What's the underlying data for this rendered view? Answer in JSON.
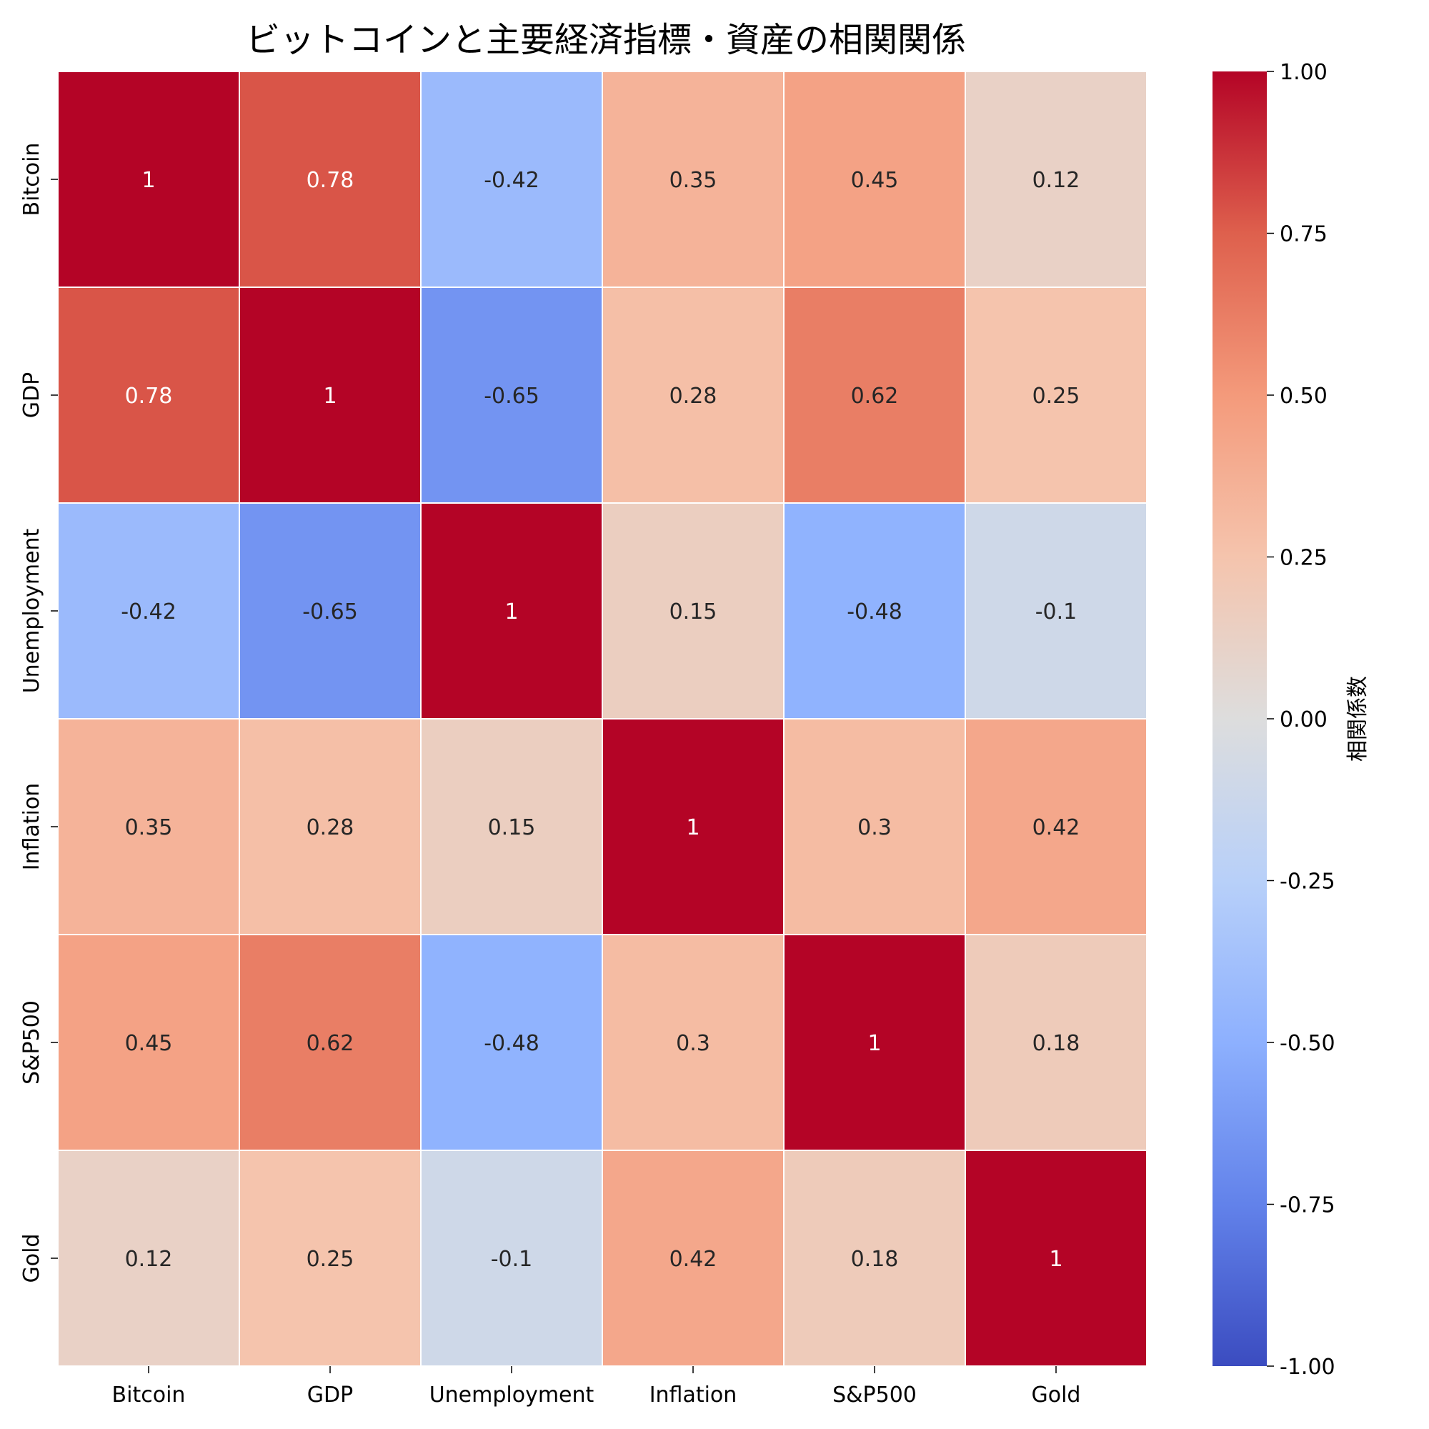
{
  "chart_data": {
    "type": "heatmap",
    "title": "ビットコインと主要経済指標・資産の相関関係",
    "x_labels": [
      "Bitcoin",
      "GDP",
      "Unemployment",
      "Inflation",
      "S&P500",
      "Gold"
    ],
    "y_labels": [
      "Bitcoin",
      "GDP",
      "Unemployment",
      "Inflation",
      "S&P500",
      "Gold"
    ],
    "values": [
      [
        1,
        0.78,
        -0.42,
        0.35,
        0.45,
        0.12
      ],
      [
        0.78,
        1,
        -0.65,
        0.28,
        0.62,
        0.25
      ],
      [
        -0.42,
        -0.65,
        1,
        0.15,
        -0.48,
        -0.1
      ],
      [
        0.35,
        0.28,
        0.15,
        1,
        0.3,
        0.42
      ],
      [
        0.45,
        0.62,
        -0.48,
        0.3,
        1,
        0.18
      ],
      [
        0.12,
        0.25,
        -0.1,
        0.42,
        0.18,
        1
      ]
    ],
    "cell_labels": [
      [
        "1",
        "0.78",
        "-0.42",
        "0.35",
        "0.45",
        "0.12"
      ],
      [
        "0.78",
        "1",
        "-0.65",
        "0.28",
        "0.62",
        "0.25"
      ],
      [
        "-0.42",
        "-0.65",
        "1",
        "0.15",
        "-0.48",
        "-0.1"
      ],
      [
        "0.35",
        "0.28",
        "0.15",
        "1",
        "0.3",
        "0.42"
      ],
      [
        "0.45",
        "0.62",
        "-0.48",
        "0.3",
        "1",
        "0.18"
      ],
      [
        "0.12",
        "0.25",
        "-0.1",
        "0.42",
        "0.18",
        "1"
      ]
    ],
    "colormap": "coolwarm",
    "vmin": -1,
    "vmax": 1,
    "colorbar": {
      "label": "相関係数",
      "ticks": [
        1,
        0.75,
        0.5,
        0.25,
        0,
        -0.25,
        -0.5,
        -0.75,
        -1
      ],
      "tick_labels": [
        "1.00",
        "0.75",
        "0.50",
        "0.25",
        "0.00",
        "-0.25",
        "-0.50",
        "-0.75",
        "-1.00"
      ]
    }
  }
}
